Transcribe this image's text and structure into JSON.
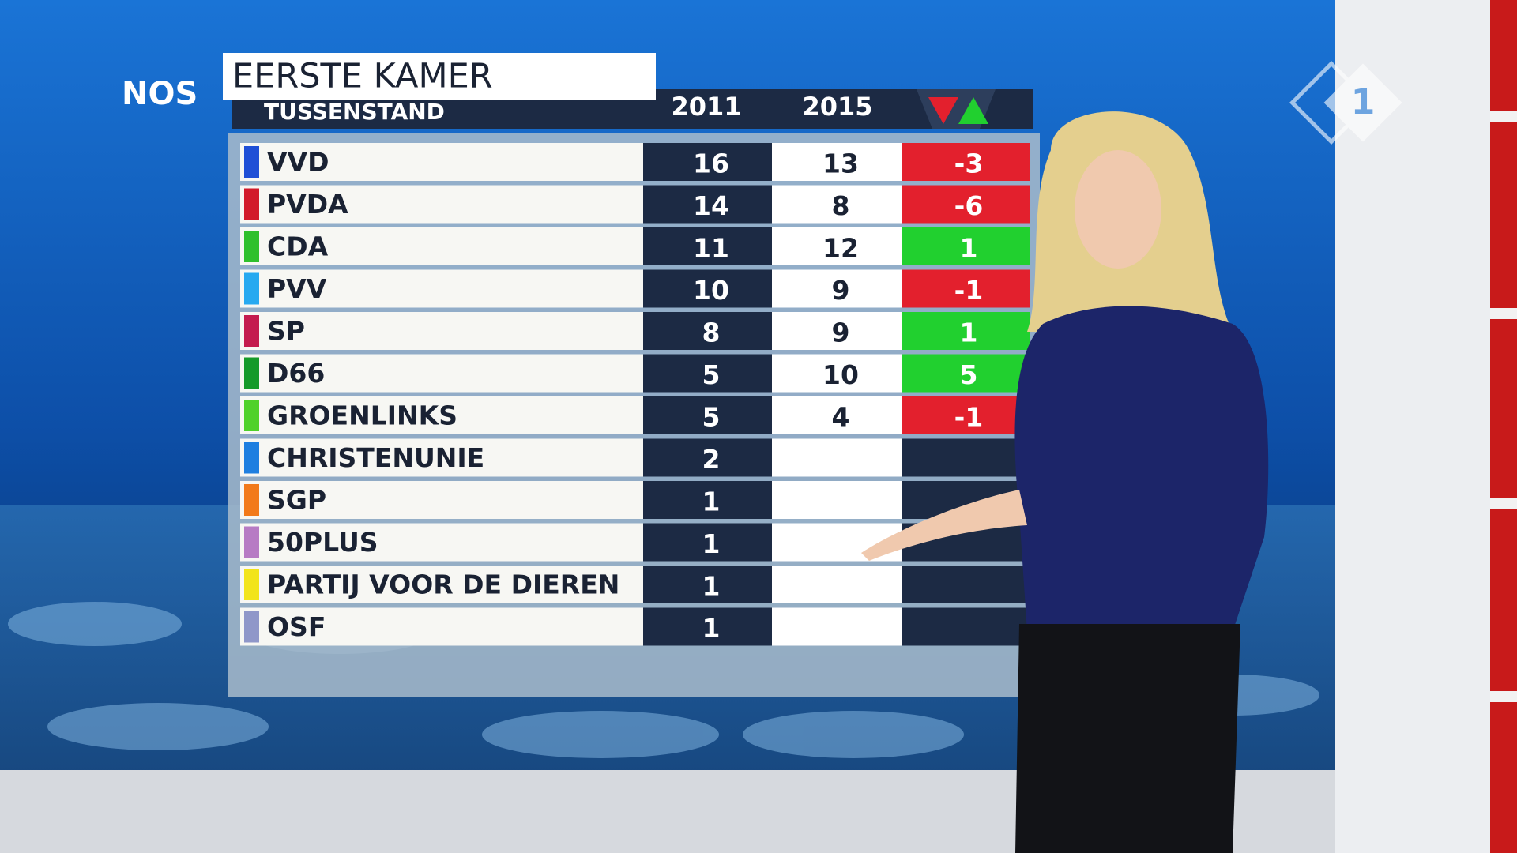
{
  "header": {
    "logo": "NOS",
    "channel_logo": "1",
    "title": "EERSTE KAMER",
    "subtitle": "TUSSENSTAND",
    "col_2011": "2011",
    "col_2015": "2015"
  },
  "table": {
    "rows": [
      {
        "party": "VVD",
        "color": "#1f4fd6",
        "y2011": 16,
        "y2015": 13,
        "change": -3
      },
      {
        "party": "PVDA",
        "color": "#d21a2a",
        "y2011": 14,
        "y2015": 8,
        "change": -6
      },
      {
        "party": "CDA",
        "color": "#2fc02c",
        "y2011": 11,
        "y2015": 12,
        "change": 1
      },
      {
        "party": "PVV",
        "color": "#27a9f0",
        "y2011": 10,
        "y2015": 9,
        "change": -1
      },
      {
        "party": "SP",
        "color": "#c41b4e",
        "y2011": 8,
        "y2015": 9,
        "change": 1
      },
      {
        "party": "D66",
        "color": "#159a2a",
        "y2011": 5,
        "y2015": 10,
        "change": 5
      },
      {
        "party": "GROENLINKS",
        "color": "#4fd12a",
        "y2011": 5,
        "y2015": 4,
        "change": -1
      },
      {
        "party": "CHRISTENUNIE",
        "color": "#1e7fe0",
        "y2011": 2,
        "y2015": null,
        "change": null
      },
      {
        "party": "SGP",
        "color": "#f27a1a",
        "y2011": 1,
        "y2015": null,
        "change": null
      },
      {
        "party": "50PLUS",
        "color": "#b77bc4",
        "y2011": 1,
        "y2015": null,
        "change": null
      },
      {
        "party": "PARTIJ VOOR DE DIEREN",
        "color": "#f2e41a",
        "y2011": 1,
        "y2015": null,
        "change": null
      },
      {
        "party": "OSF",
        "color": "#8f97c9",
        "y2011": 1,
        "y2015": null,
        "change": null
      }
    ]
  }
}
